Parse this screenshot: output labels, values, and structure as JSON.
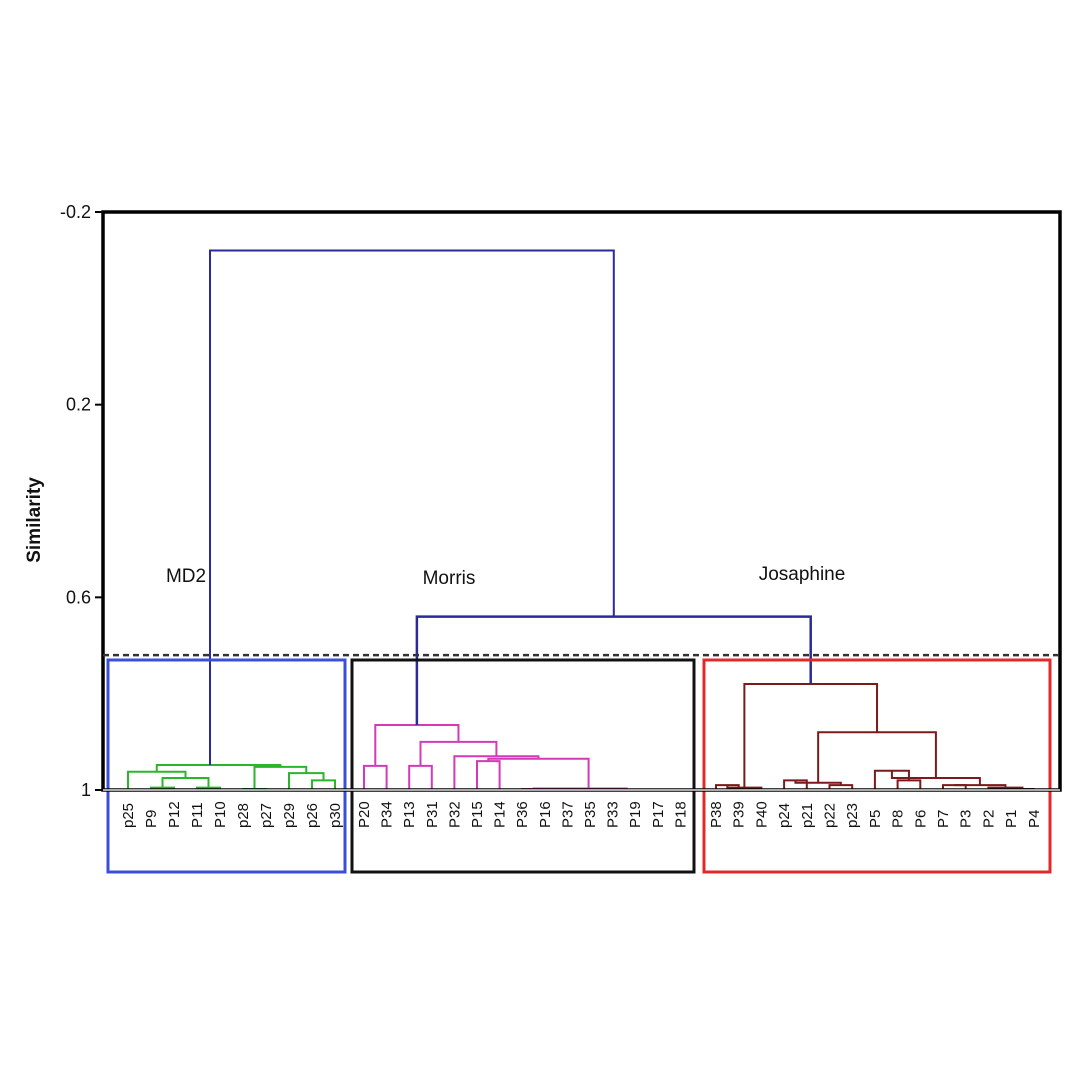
{
  "chart_data": {
    "type": "dendrogram",
    "ylabel": "Similarity",
    "ylim": [
      -0.2,
      1
    ],
    "yticks": [
      -0.2,
      0.2,
      0.6,
      1
    ],
    "ytick_labels": [
      "-0.2",
      "0.2",
      "0.6",
      "1"
    ],
    "cutoff_similarity": 0.72,
    "root_similarity": -0.12,
    "groups": [
      {
        "name": "MD2",
        "color": "#2ab52a",
        "box_color": "#3a4fd8",
        "leaves": [
          "p25",
          "P9",
          "P12",
          "P11",
          "P10",
          "p28",
          "p27",
          "p29",
          "p26",
          "p30"
        ],
        "joins_at_similarity": -0.12
      },
      {
        "name": "Morris",
        "color": "#d43ab8",
        "box_color": "#111111",
        "leaves": [
          "P20",
          "P34",
          "P13",
          "P31",
          "P32",
          "P15",
          "P14",
          "P36",
          "P16",
          "P37",
          "P35",
          "P33",
          "P19",
          "P17",
          "P18"
        ],
        "joins_at_similarity": 0.64
      },
      {
        "name": "Josaphine",
        "color": "#7a1a1a",
        "box_color": "#e02a2a",
        "leaves": [
          "P38",
          "P39",
          "P40",
          "p24",
          "p21",
          "p22",
          "p23",
          "P5",
          "P8",
          "P6",
          "P7",
          "P3",
          "P2",
          "P1",
          "P4"
        ],
        "joins_at_similarity": 0.64
      }
    ],
    "linkage_color": "#2a2a9a"
  }
}
